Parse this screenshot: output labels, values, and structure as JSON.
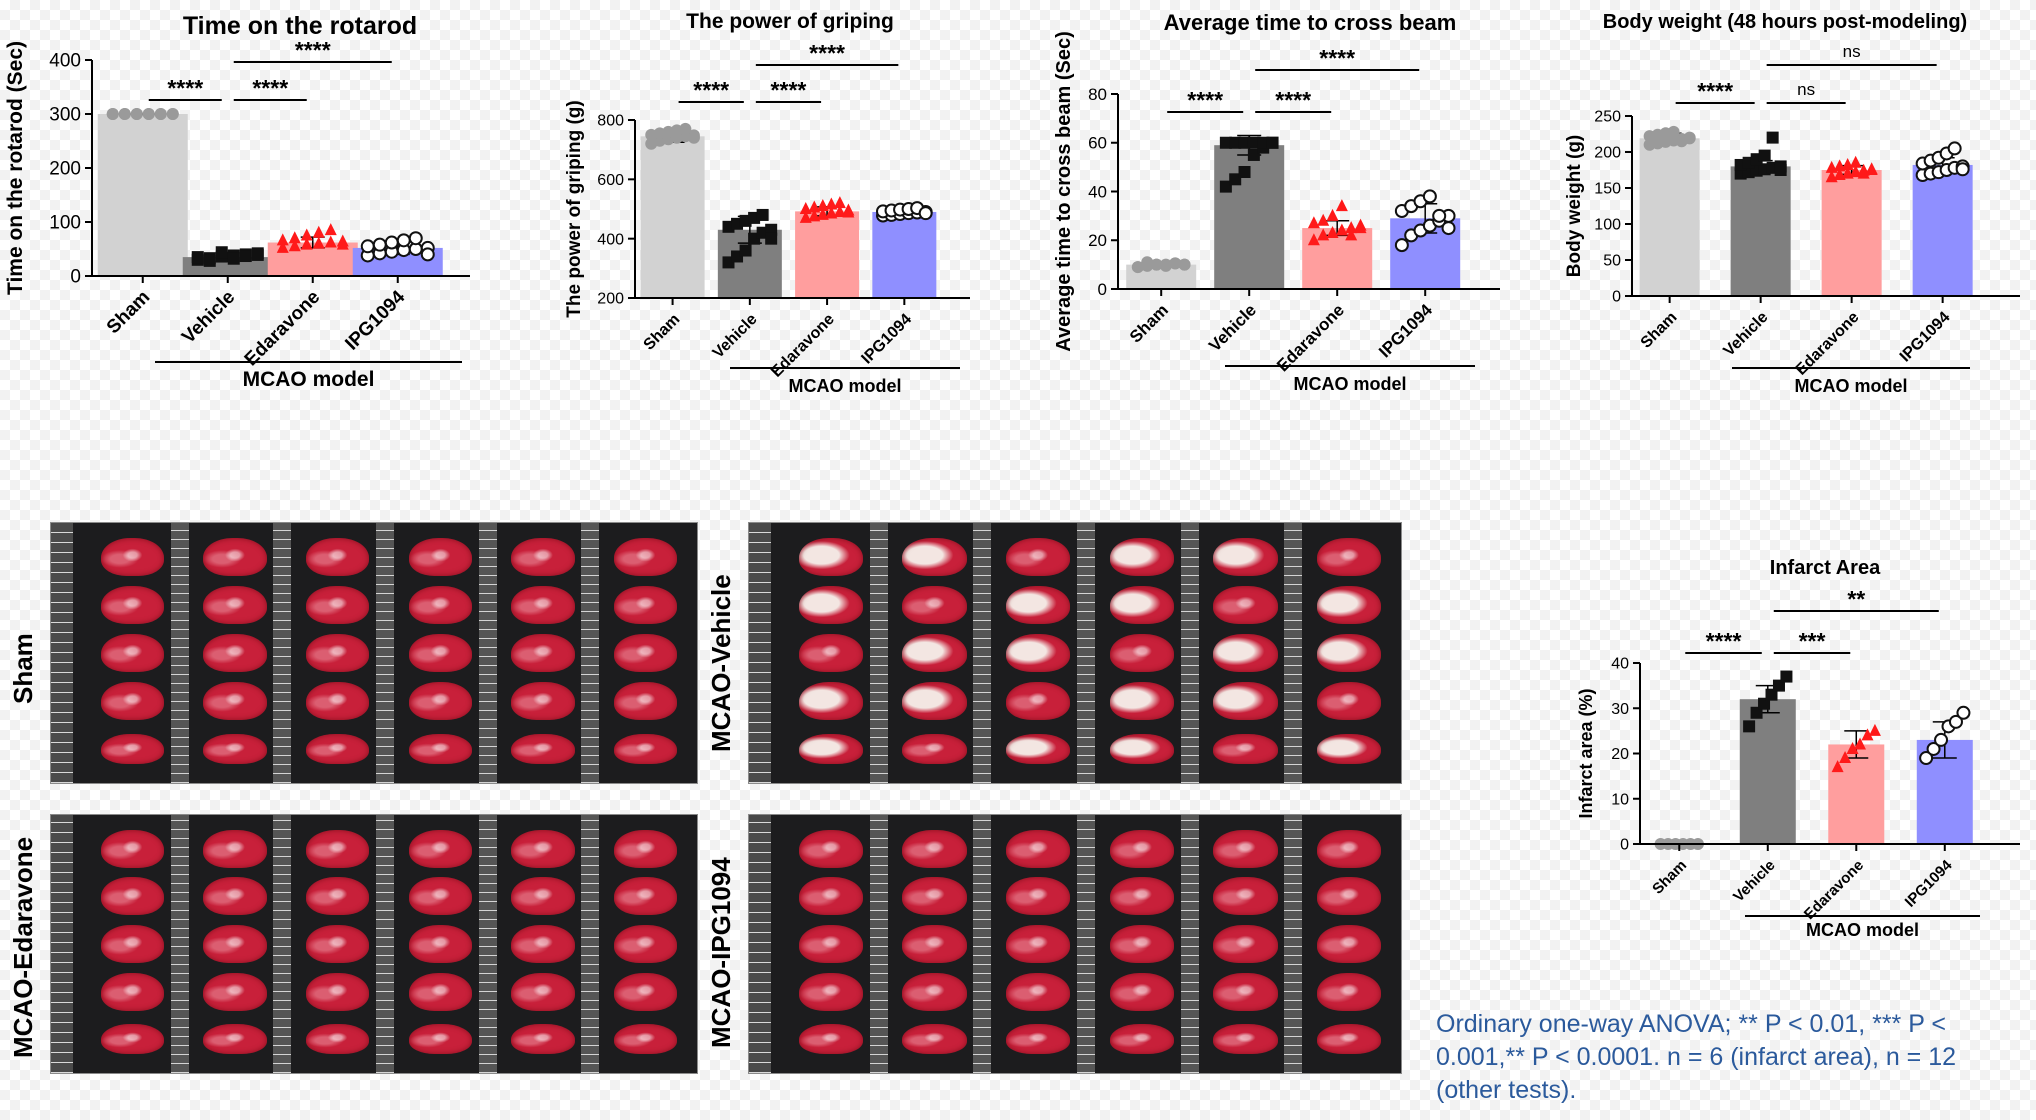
{
  "chart_data": [
    {
      "type": "bar",
      "title": "Time on the rotarod",
      "ylabel": "Time on the rotarod (Sec)",
      "xlabel": "",
      "group_label": "MCAO model",
      "categories": [
        "Sham",
        "Vehicle",
        "Edaravone",
        "IPG1094"
      ],
      "values": [
        300,
        35,
        62,
        52
      ],
      "sd": [
        1,
        8,
        10,
        12
      ],
      "points": [
        [
          300,
          300,
          300,
          300,
          300,
          300,
          300,
          300,
          300,
          300,
          300,
          300
        ],
        [
          30,
          33,
          36,
          38,
          40,
          42,
          35,
          28,
          44,
          32,
          37,
          39
        ],
        [
          52,
          55,
          58,
          60,
          62,
          64,
          66,
          70,
          75,
          80,
          85,
          58
        ],
        [
          38,
          42,
          45,
          48,
          50,
          52,
          55,
          58,
          62,
          66,
          70,
          40
        ]
      ],
      "ylim": [
        0,
        400
      ],
      "yticks": [
        0,
        100,
        200,
        300,
        400
      ],
      "brackets": [
        {
          "from": 0,
          "to": 1,
          "label": "****",
          "level": 0
        },
        {
          "from": 1,
          "to": 2,
          "label": "****",
          "level": 0
        },
        {
          "from": 1,
          "to": 3,
          "label": "****",
          "level": 1
        }
      ]
    },
    {
      "type": "bar",
      "title": "The power of griping",
      "ylabel": "The power of griping (g)",
      "xlabel": "",
      "group_label": "MCAO model",
      "categories": [
        "Sham",
        "Vehicle",
        "Edaravone",
        "IPG1094"
      ],
      "values": [
        745,
        430,
        492,
        490
      ],
      "sd": [
        20,
        45,
        15,
        10
      ],
      "points": [
        [
          720,
          730,
          735,
          740,
          745,
          748,
          750,
          755,
          760,
          765,
          770,
          740
        ],
        [
          320,
          340,
          360,
          400,
          420,
          430,
          440,
          450,
          460,
          470,
          480,
          400
        ],
        [
          470,
          475,
          480,
          485,
          490,
          495,
          500,
          505,
          510,
          515,
          520,
          488
        ],
        [
          478,
          480,
          483,
          486,
          488,
          490,
          492,
          495,
          498,
          500,
          503,
          486
        ]
      ],
      "ylim": [
        200,
        800
      ],
      "yticks": [
        200,
        400,
        600,
        800
      ],
      "brackets": [
        {
          "from": 0,
          "to": 1,
          "label": "****",
          "level": 0
        },
        {
          "from": 1,
          "to": 2,
          "label": "****",
          "level": 0
        },
        {
          "from": 1,
          "to": 3,
          "label": "****",
          "level": 1
        }
      ]
    },
    {
      "type": "bar",
      "title": "Average time to cross beam",
      "ylabel": "Average time to cross beam (Sec)",
      "xlabel": "",
      "group_label": "MCAO model",
      "categories": [
        "Sham",
        "Vehicle",
        "Edaravone",
        "IPG1094"
      ],
      "values": [
        10,
        59,
        25,
        29
      ],
      "sd": [
        1,
        4,
        3,
        6
      ],
      "points": [
        [
          9,
          9.5,
          10,
          10,
          10.5,
          10,
          9,
          11,
          10,
          9.5,
          10.5,
          10
        ],
        [
          42,
          45,
          48,
          55,
          58,
          60,
          60,
          60,
          60,
          60,
          60,
          60
        ],
        [
          20,
          22,
          23,
          24,
          25,
          26,
          27,
          28,
          30,
          34,
          22,
          25
        ],
        [
          18,
          22,
          24,
          26,
          28,
          30,
          32,
          34,
          36,
          38,
          30,
          25
        ]
      ],
      "ylim": [
        0,
        80
      ],
      "yticks": [
        0,
        20,
        40,
        60,
        80
      ],
      "brackets": [
        {
          "from": 0,
          "to": 1,
          "label": "****",
          "level": 0
        },
        {
          "from": 1,
          "to": 2,
          "label": "****",
          "level": 0
        },
        {
          "from": 1,
          "to": 3,
          "label": "****",
          "level": 1
        }
      ]
    },
    {
      "type": "bar",
      "title": "Body weight (48 hours post-modeling)",
      "ylabel": "Body weight (g)",
      "xlabel": "",
      "group_label": "MCAO model",
      "categories": [
        "Sham",
        "Vehicle",
        "Edaravone",
        "IPG1094"
      ],
      "values": [
        219,
        180,
        175,
        182
      ],
      "sd": [
        7,
        8,
        6,
        10
      ],
      "points": [
        [
          210,
          212,
          214,
          216,
          218,
          220,
          222,
          224,
          226,
          228,
          215,
          219
        ],
        [
          170,
          172,
          174,
          176,
          178,
          180,
          182,
          185,
          190,
          195,
          220,
          175
        ],
        [
          165,
          168,
          170,
          172,
          174,
          176,
          178,
          180,
          182,
          185,
          170,
          175
        ],
        [
          168,
          170,
          172,
          175,
          178,
          180,
          184,
          188,
          192,
          198,
          205,
          176
        ]
      ],
      "ylim": [
        0,
        250
      ],
      "yticks": [
        0,
        50,
        100,
        150,
        200,
        250
      ],
      "brackets": [
        {
          "from": 0,
          "to": 1,
          "label": "****",
          "level": 0
        },
        {
          "from": 1,
          "to": 2,
          "label": "ns",
          "level": 0
        },
        {
          "from": 1,
          "to": 3,
          "label": "ns",
          "level": 1
        }
      ]
    },
    {
      "type": "bar",
      "title": "Infarct Area",
      "ylabel": "Infarct area (%)",
      "xlabel": "",
      "group_label": "MCAO model",
      "categories": [
        "Sham",
        "Vehicle",
        "Edaravone",
        "IPG1094"
      ],
      "values": [
        0,
        32,
        22,
        23
      ],
      "sd": [
        0,
        3,
        3,
        4
      ],
      "points": [
        [
          0,
          0,
          0,
          0,
          0,
          0
        ],
        [
          26,
          29,
          31,
          33,
          35,
          37
        ],
        [
          17,
          19,
          21,
          22,
          24,
          25
        ],
        [
          19,
          21,
          23,
          26,
          27,
          29
        ]
      ],
      "ylim": [
        0,
        40
      ],
      "yticks": [
        0,
        10,
        20,
        30,
        40
      ],
      "brackets": [
        {
          "from": 0,
          "to": 1,
          "label": "****",
          "level": 0
        },
        {
          "from": 1,
          "to": 2,
          "label": "***",
          "level": 0
        },
        {
          "from": 1,
          "to": 3,
          "label": "**",
          "level": 1
        }
      ]
    }
  ],
  "styles": {
    "bar_colors": [
      "#d2d2d2",
      "#7f7f7f",
      "#ff9e9e",
      "#8f8fff"
    ],
    "point_colors": [
      "#9a9a9a",
      "#111111",
      "#ff1a1a",
      "#111111"
    ],
    "point_shapes": [
      "circle",
      "square",
      "triangle",
      "open-circle"
    ]
  },
  "photo_groups": [
    "Sham",
    "MCAO-Vehicle",
    "MCAO-Edaravone",
    "MCAO-IPG1094"
  ],
  "footnote": "Ordinary one-way ANOVA;  ** P < 0.01, *** P < 0.001,** P < 0.0001. n = 6 (infarct area), n = 12 (other tests)."
}
